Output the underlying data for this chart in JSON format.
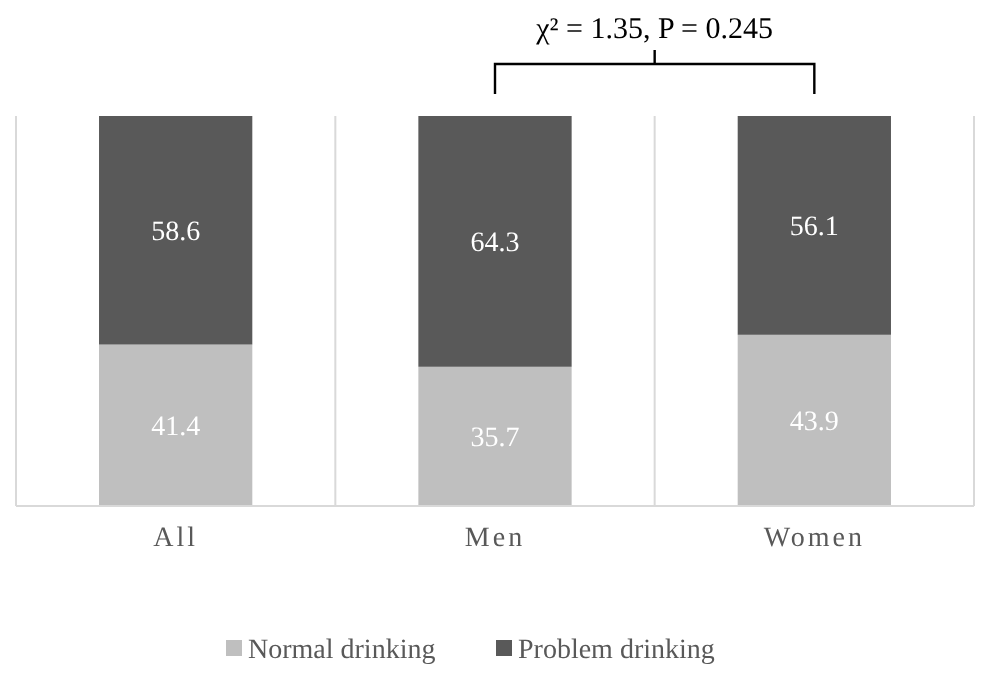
{
  "chart_data": {
    "type": "bar",
    "stacked": true,
    "categories": [
      "All",
      "Men",
      "Women"
    ],
    "series": [
      {
        "name": "Normal drinking",
        "color": "#bfbfbf",
        "values": [
          41.4,
          35.7,
          43.9
        ]
      },
      {
        "name": "Problem drinking",
        "color": "#595959",
        "values": [
          58.6,
          64.3,
          56.1
        ]
      }
    ],
    "data_labels": true,
    "grid": "x",
    "legend": "bottom",
    "annotations": [
      "χ² = 1.35, P = 0.245"
    ]
  }
}
